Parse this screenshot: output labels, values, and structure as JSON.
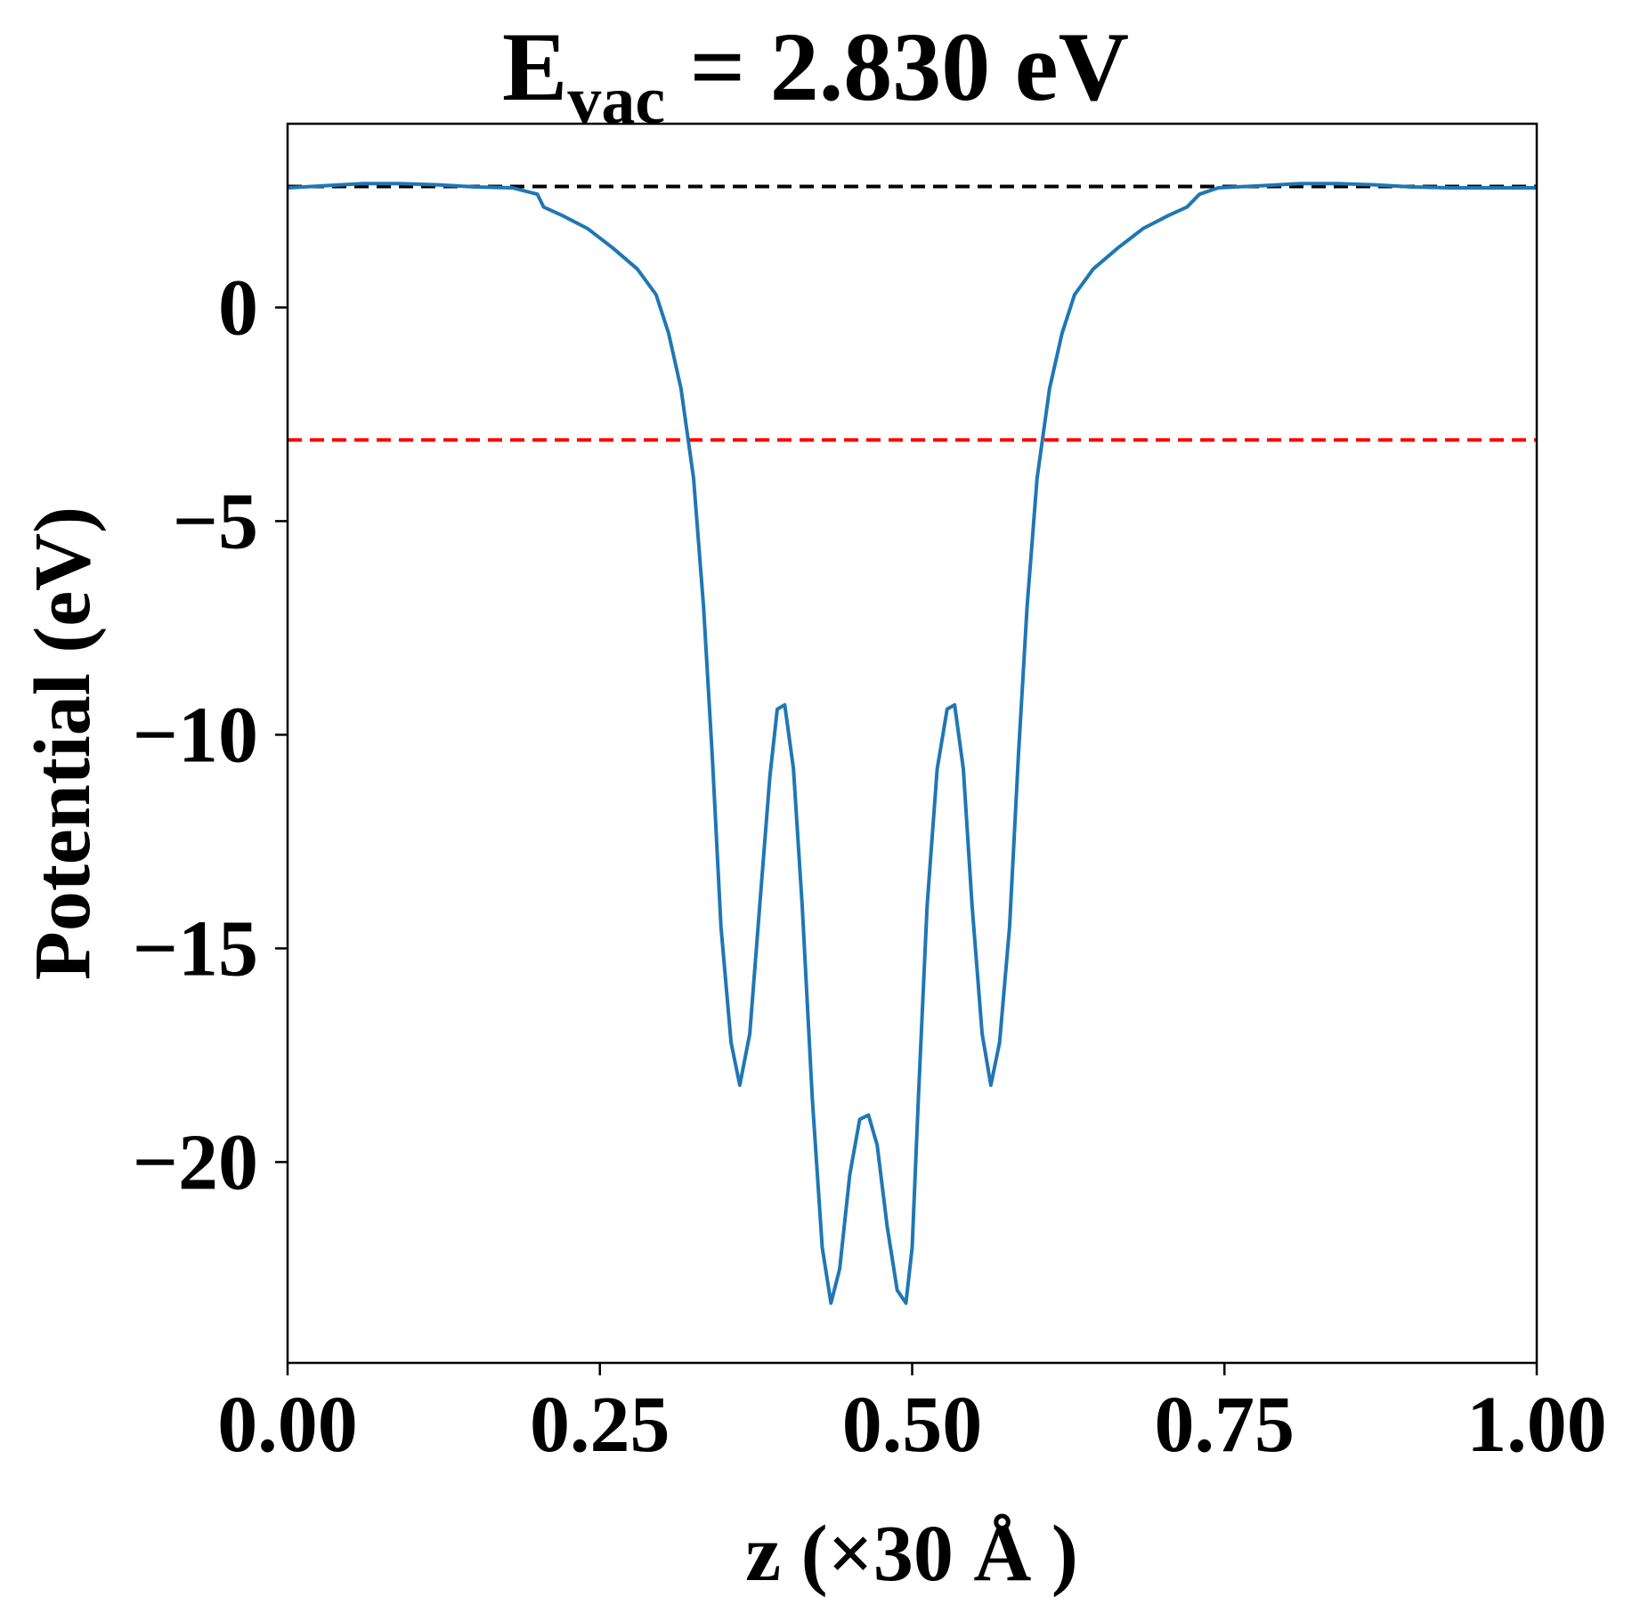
{
  "chart_data": {
    "type": "line",
    "title": {
      "main": "E",
      "subscript": "vac",
      "rest": " = 2.830 eV"
    },
    "xlabel": "z (×30 Å )",
    "ylabel": "Potential (eV)",
    "xlim": [
      0,
      1
    ],
    "ylim": [
      -24.7,
      4.3
    ],
    "xticks": [
      {
        "value": 0.0,
        "label": "0.00"
      },
      {
        "value": 0.25,
        "label": "0.25"
      },
      {
        "value": 0.5,
        "label": "0.50"
      },
      {
        "value": 0.75,
        "label": "0.75"
      },
      {
        "value": 1.0,
        "label": "1.00"
      }
    ],
    "yticks": [
      {
        "value": 0,
        "label": "0"
      },
      {
        "value": -5,
        "label": "−5"
      },
      {
        "value": -10,
        "label": "−10"
      },
      {
        "value": -15,
        "label": "−15"
      },
      {
        "value": -20,
        "label": "−20"
      }
    ],
    "grid": false,
    "series": [
      {
        "color": "#1f77b4",
        "points": [
          [
            0.0,
            2.8
          ],
          [
            0.03,
            2.85
          ],
          [
            0.06,
            2.9
          ],
          [
            0.09,
            2.9
          ],
          [
            0.12,
            2.87
          ],
          [
            0.15,
            2.82
          ],
          [
            0.18,
            2.8
          ],
          [
            0.2,
            2.65
          ],
          [
            0.205,
            2.35
          ],
          [
            0.22,
            2.15
          ],
          [
            0.24,
            1.85
          ],
          [
            0.26,
            1.4
          ],
          [
            0.28,
            0.9
          ],
          [
            0.295,
            0.3
          ],
          [
            0.305,
            -0.6
          ],
          [
            0.315,
            -1.9
          ],
          [
            0.325,
            -4.0
          ],
          [
            0.333,
            -7.0
          ],
          [
            0.34,
            -10.5
          ],
          [
            0.347,
            -14.5
          ],
          [
            0.355,
            -17.2
          ],
          [
            0.362,
            -18.2
          ],
          [
            0.37,
            -17.0
          ],
          [
            0.378,
            -14.0
          ],
          [
            0.386,
            -11.0
          ],
          [
            0.392,
            -9.4
          ],
          [
            0.398,
            -9.3
          ],
          [
            0.405,
            -10.8
          ],
          [
            0.412,
            -14.0
          ],
          [
            0.42,
            -18.5
          ],
          [
            0.428,
            -22.0
          ],
          [
            0.435,
            -23.3
          ],
          [
            0.442,
            -22.5
          ],
          [
            0.45,
            -20.3
          ],
          [
            0.458,
            -19.0
          ],
          [
            0.465,
            -18.9
          ],
          [
            0.472,
            -19.6
          ],
          [
            0.48,
            -21.5
          ],
          [
            0.488,
            -23.0
          ],
          [
            0.495,
            -23.3
          ],
          [
            0.5,
            -22.0
          ],
          [
            0.505,
            -18.5
          ],
          [
            0.512,
            -14.0
          ],
          [
            0.52,
            -10.8
          ],
          [
            0.528,
            -9.4
          ],
          [
            0.534,
            -9.3
          ],
          [
            0.541,
            -10.8
          ],
          [
            0.548,
            -14.0
          ],
          [
            0.556,
            -17.0
          ],
          [
            0.563,
            -18.2
          ],
          [
            0.57,
            -17.2
          ],
          [
            0.578,
            -14.5
          ],
          [
            0.585,
            -10.5
          ],
          [
            0.592,
            -7.0
          ],
          [
            0.6,
            -4.0
          ],
          [
            0.61,
            -1.9
          ],
          [
            0.62,
            -0.6
          ],
          [
            0.63,
            0.3
          ],
          [
            0.645,
            0.9
          ],
          [
            0.665,
            1.4
          ],
          [
            0.685,
            1.85
          ],
          [
            0.705,
            2.15
          ],
          [
            0.72,
            2.35
          ],
          [
            0.73,
            2.65
          ],
          [
            0.745,
            2.8
          ],
          [
            0.78,
            2.85
          ],
          [
            0.81,
            2.9
          ],
          [
            0.84,
            2.9
          ],
          [
            0.87,
            2.87
          ],
          [
            0.9,
            2.82
          ],
          [
            0.93,
            2.8
          ],
          [
            0.96,
            2.8
          ],
          [
            1.0,
            2.8
          ]
        ]
      }
    ],
    "reference_lines": [
      {
        "y": 2.83,
        "color": "#000000",
        "style": "dashed"
      },
      {
        "y": -3.1,
        "color": "#ff0000",
        "style": "dashed"
      }
    ]
  }
}
